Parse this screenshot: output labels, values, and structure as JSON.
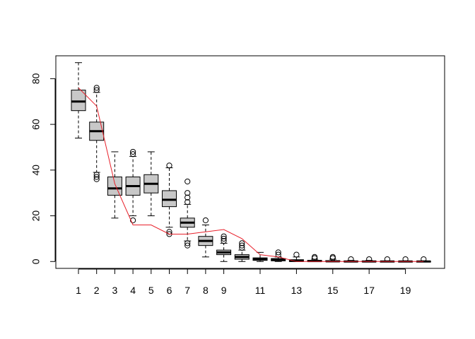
{
  "chart_data": {
    "type": "box",
    "x_tick_labels": [
      "1",
      "2",
      "3",
      "4",
      "5",
      "6",
      "7",
      "8",
      "9",
      "11",
      "13",
      "15",
      "17",
      "19"
    ],
    "x_tick_positions": [
      1,
      2,
      3,
      4,
      5,
      6,
      7,
      8,
      9,
      11,
      13,
      15,
      17,
      19
    ],
    "y_ticks": [
      0,
      20,
      40,
      60,
      80
    ],
    "ylim": [
      -3,
      90
    ],
    "box_fill": "#c8c8c8",
    "line_color": "#e8202a",
    "boxes": [
      {
        "x": 1,
        "min": 54,
        "q1": 66,
        "median": 70,
        "q3": 75,
        "max": 87,
        "outliers": []
      },
      {
        "x": 2,
        "min": 39,
        "q1": 53,
        "median": 57,
        "q3": 61,
        "max": 74,
        "outliers": [
          36,
          37,
          38,
          75,
          76
        ]
      },
      {
        "x": 3,
        "min": 19,
        "q1": 29,
        "median": 32,
        "q3": 37,
        "max": 48,
        "outliers": []
      },
      {
        "x": 4,
        "min": 20,
        "q1": 29,
        "median": 33,
        "q3": 37,
        "max": 46,
        "outliers": [
          18,
          47,
          48
        ]
      },
      {
        "x": 5,
        "min": 20,
        "q1": 30,
        "median": 34,
        "q3": 38,
        "max": 48,
        "outliers": []
      },
      {
        "x": 6,
        "min": 15,
        "q1": 24,
        "median": 27,
        "q3": 31,
        "max": 41,
        "outliers": [
          12,
          13,
          42
        ]
      },
      {
        "x": 7,
        "min": 9,
        "q1": 15,
        "median": 17,
        "q3": 19,
        "max": 25,
        "outliers": [
          7,
          8,
          26,
          28,
          30,
          35
        ]
      },
      {
        "x": 8,
        "min": 2,
        "q1": 7,
        "median": 9,
        "q3": 11,
        "max": 16,
        "outliers": [
          18
        ]
      },
      {
        "x": 9,
        "min": 0,
        "q1": 3,
        "median": 4,
        "q3": 5,
        "max": 8,
        "outliers": [
          9,
          10,
          11
        ]
      },
      {
        "x": 10,
        "min": 0,
        "q1": 1,
        "median": 2,
        "q3": 3,
        "max": 5,
        "outliers": [
          6,
          7,
          8
        ]
      },
      {
        "x": 11,
        "min": 0,
        "q1": 0.5,
        "median": 1,
        "q3": 1.6,
        "max": 4,
        "outliers": []
      },
      {
        "x": 12,
        "min": 0,
        "q1": 0.3,
        "median": 0.8,
        "q3": 1.3,
        "max": 2,
        "outliers": [
          3,
          4
        ]
      },
      {
        "x": 13,
        "min": 0,
        "q1": 0,
        "median": 0.3,
        "q3": 0.8,
        "max": 2,
        "outliers": [
          3
        ]
      },
      {
        "x": 14,
        "min": 0,
        "q1": 0,
        "median": 0.2,
        "q3": 0.5,
        "max": 1,
        "outliers": [
          1.5,
          2
        ]
      },
      {
        "x": 15,
        "min": 0,
        "q1": 0,
        "median": 0.1,
        "q3": 0.4,
        "max": 1,
        "outliers": [
          1.5,
          2
        ]
      },
      {
        "x": 16,
        "min": 0,
        "q1": 0,
        "median": 0,
        "q3": 0.2,
        "max": 0.5,
        "outliers": [
          1
        ]
      },
      {
        "x": 17,
        "min": 0,
        "q1": 0,
        "median": 0,
        "q3": 0.2,
        "max": 0.5,
        "outliers": [
          1
        ]
      },
      {
        "x": 18,
        "min": 0,
        "q1": 0,
        "median": 0,
        "q3": 0.1,
        "max": 0.3,
        "outliers": [
          1
        ]
      },
      {
        "x": 19,
        "min": 0,
        "q1": 0,
        "median": 0,
        "q3": 0.1,
        "max": 0.3,
        "outliers": [
          1
        ]
      },
      {
        "x": 20,
        "min": 0,
        "q1": 0,
        "median": 0,
        "q3": 0.1,
        "max": 0.3,
        "outliers": [
          1
        ]
      }
    ],
    "line": {
      "x": [
        1,
        2,
        3,
        4,
        5,
        6,
        7,
        8,
        9,
        10,
        11,
        12,
        13,
        14,
        15,
        16,
        17,
        18,
        19,
        20
      ],
      "y": [
        76,
        68,
        34,
        16,
        16,
        12,
        12,
        13,
        14,
        10,
        3,
        2,
        0,
        0,
        0,
        0,
        0,
        0,
        0,
        0
      ]
    }
  }
}
